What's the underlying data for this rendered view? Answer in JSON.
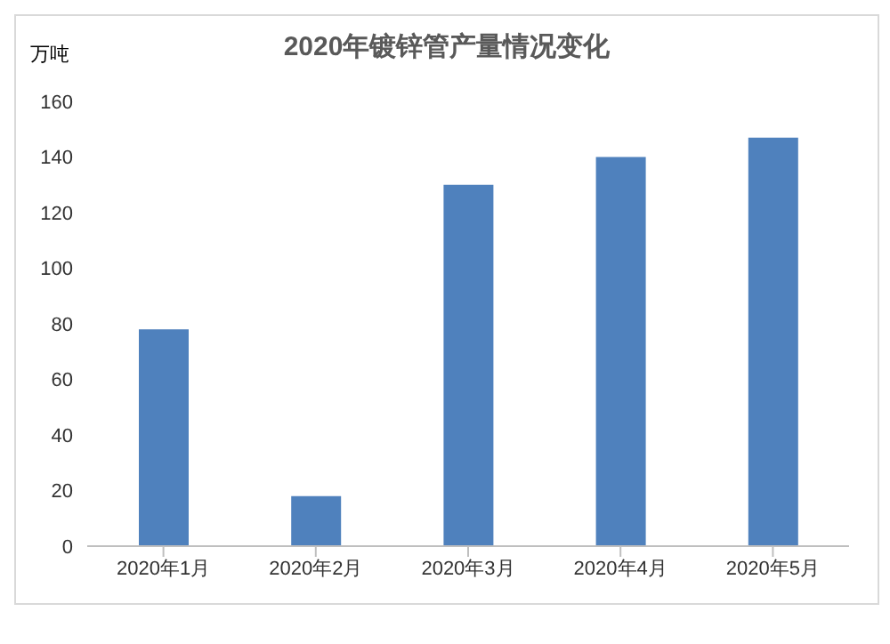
{
  "chart_data": {
    "type": "bar",
    "title": "2020年镀锌管产量情况变化",
    "ylabel": "万吨",
    "categories": [
      "2020年1月",
      "2020年2月",
      "2020年3月",
      "2020年4月",
      "2020年5月"
    ],
    "values": [
      78,
      18,
      130,
      140,
      147
    ],
    "color": "#4f81bd",
    "ylim": [
      0,
      160
    ],
    "yticks": [
      0,
      20,
      40,
      60,
      80,
      100,
      120,
      140,
      160
    ],
    "grid": false,
    "legend": false
  }
}
